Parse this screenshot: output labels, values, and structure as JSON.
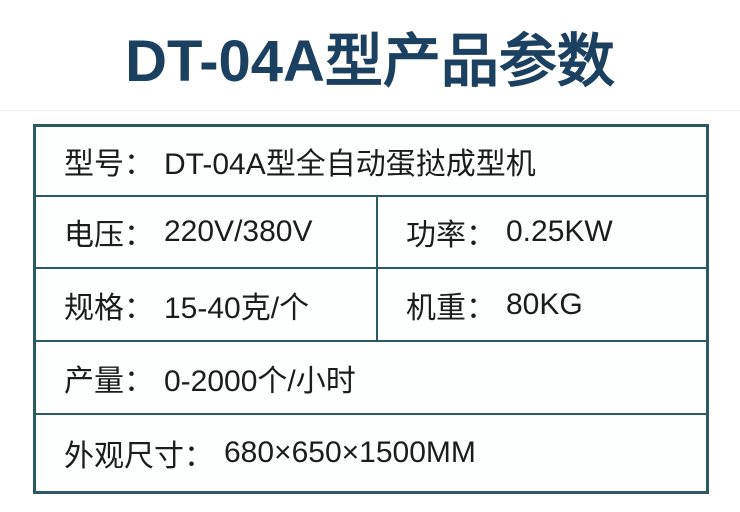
{
  "page": {
    "title": "DT-04A型产品参数",
    "title_color": "#1c4160",
    "border_color": "#2c5a64",
    "background": "#ffffff"
  },
  "table": {
    "colon": "：",
    "rows": [
      {
        "label": "型号",
        "value": "DT-04A型全自动蛋挞成型机"
      },
      {
        "cells": [
          {
            "label": "电压",
            "value": "220V/380V"
          },
          {
            "label": "功率",
            "value": "0.25KW"
          }
        ]
      },
      {
        "cells": [
          {
            "label": "规格",
            "value": "15-40克/个"
          },
          {
            "label": "机重",
            "value": "80KG"
          }
        ]
      },
      {
        "label": "产量",
        "value": "0-2000个/小时"
      },
      {
        "label": "外观尺寸",
        "value": "680×650×1500MM"
      }
    ]
  }
}
